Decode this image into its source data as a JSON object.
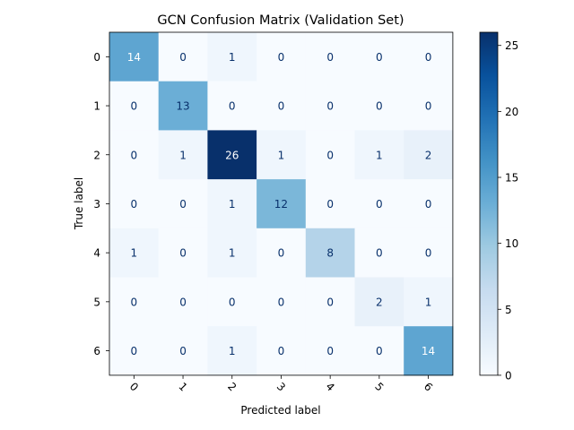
{
  "chart_data": {
    "type": "heatmap",
    "title": "GCN Confusion Matrix (Validation Set)",
    "xlabel": "Predicted label",
    "ylabel": "True label",
    "x_categories": [
      "0",
      "1",
      "2",
      "3",
      "4",
      "5",
      "6"
    ],
    "y_categories": [
      "0",
      "1",
      "2",
      "3",
      "4",
      "5",
      "6"
    ],
    "values": [
      [
        14,
        0,
        1,
        0,
        0,
        0,
        0
      ],
      [
        0,
        13,
        0,
        0,
        0,
        0,
        0
      ],
      [
        0,
        1,
        26,
        1,
        0,
        1,
        2
      ],
      [
        0,
        0,
        1,
        12,
        0,
        0,
        0
      ],
      [
        1,
        0,
        1,
        0,
        8,
        0,
        0
      ],
      [
        0,
        0,
        0,
        0,
        0,
        2,
        1
      ],
      [
        0,
        0,
        1,
        0,
        0,
        0,
        14
      ]
    ],
    "colormap": "Blues",
    "colorbar": {
      "range": [
        0,
        26
      ],
      "ticks": [
        "0",
        "5",
        "10",
        "15",
        "20",
        "25"
      ]
    },
    "x_tick_rotation": "45 degrees",
    "grid": false
  }
}
